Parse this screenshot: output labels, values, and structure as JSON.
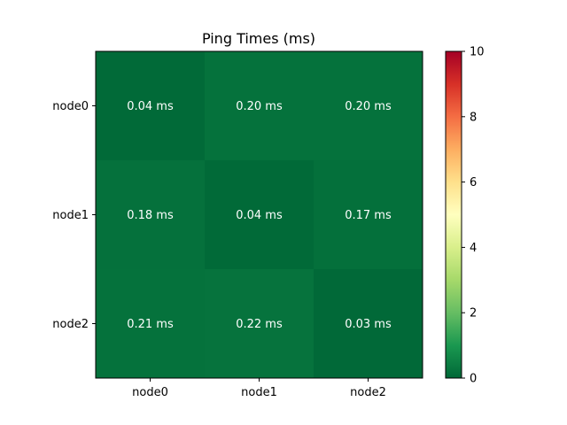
{
  "chart_data": {
    "type": "heatmap",
    "title": "Ping Times (ms)",
    "x_categories": [
      "node0",
      "node1",
      "node2"
    ],
    "y_categories": [
      "node0",
      "node1",
      "node2"
    ],
    "values": [
      [
        0.04,
        0.2,
        0.2
      ],
      [
        0.18,
        0.04,
        0.17
      ],
      [
        0.21,
        0.22,
        0.03
      ]
    ],
    "cell_labels": [
      [
        "0.04 ms",
        "0.20 ms",
        "0.20 ms"
      ],
      [
        "0.18 ms",
        "0.04 ms",
        "0.17 ms"
      ],
      [
        "0.21 ms",
        "0.22 ms",
        "0.03 ms"
      ]
    ],
    "colormap": "RdYlGn_r",
    "colorbar": {
      "range": [
        0,
        10
      ],
      "ticks": [
        0,
        2,
        4,
        6,
        8,
        10
      ],
      "tick_labels": [
        "0",
        "2",
        "4",
        "6",
        "8",
        "10"
      ]
    },
    "colors": {
      "low": "#006837",
      "mid": "#ffffbf",
      "high": "#a50026"
    }
  }
}
